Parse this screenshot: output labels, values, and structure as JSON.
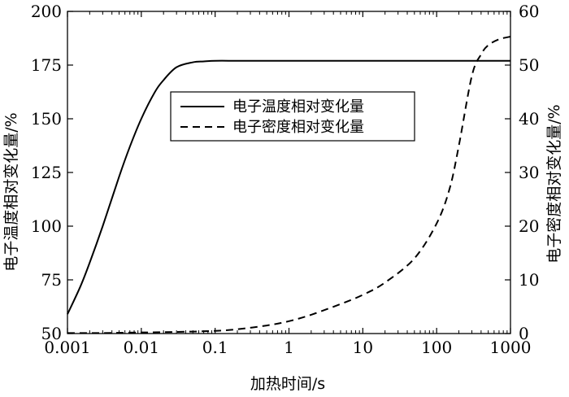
{
  "chart_data": {
    "type": "line",
    "xlabel": "加热时间/s",
    "ylabel_left": "电子温度相对变化量/%",
    "ylabel_right": "电子密度相对变化量/%",
    "x_scale": "log",
    "xlim": [
      0.001,
      1000
    ],
    "ylim_left": [
      50,
      200
    ],
    "ylim_right": [
      0,
      60
    ],
    "x_ticks": [
      0.001,
      0.01,
      0.1,
      1,
      10,
      100,
      1000
    ],
    "x_tick_labels": [
      "0.001",
      "0.01",
      "0.1",
      "1",
      "10",
      "100",
      "1000"
    ],
    "y_left_ticks": [
      50,
      75,
      100,
      125,
      150,
      175,
      200
    ],
    "y_left_tick_labels": [
      "50",
      "75",
      "100",
      "125",
      "150",
      "175",
      "200"
    ],
    "y_right_ticks": [
      0,
      10,
      20,
      30,
      40,
      50,
      60
    ],
    "y_right_tick_labels": [
      "0",
      "10",
      "20",
      "30",
      "40",
      "50",
      "60"
    ],
    "grid": false,
    "legend_position": "upper-center",
    "series": [
      {
        "name": "电子温度相对变化量",
        "axis": "left",
        "style": "solid",
        "color": "#000000",
        "x": [
          0.001,
          0.0015,
          0.002,
          0.003,
          0.005,
          0.007,
          0.01,
          0.015,
          0.02,
          0.03,
          0.05,
          0.07,
          0.1,
          0.2,
          0.5,
          1,
          10,
          100,
          1000
        ],
        "y": [
          59,
          72,
          83,
          100,
          123,
          137,
          150,
          162,
          168,
          174,
          176.3,
          176.7,
          177,
          177,
          177,
          177,
          177,
          177,
          177
        ]
      },
      {
        "name": "电子密度相对变化量",
        "axis": "right",
        "style": "dashed",
        "color": "#000000",
        "x": [
          0.001,
          0.003,
          0.01,
          0.03,
          0.1,
          0.2,
          0.5,
          1,
          2,
          5,
          10,
          20,
          50,
          100,
          150,
          200,
          300,
          400,
          500,
          700,
          1000
        ],
        "y": [
          0.1,
          0.1,
          0.2,
          0.3,
          0.5,
          0.8,
          1.5,
          2.3,
          3.5,
          5.5,
          7.2,
          9.5,
          14,
          20.5,
          27,
          35,
          48,
          52,
          53.7,
          54.8,
          55.3
        ]
      }
    ]
  }
}
